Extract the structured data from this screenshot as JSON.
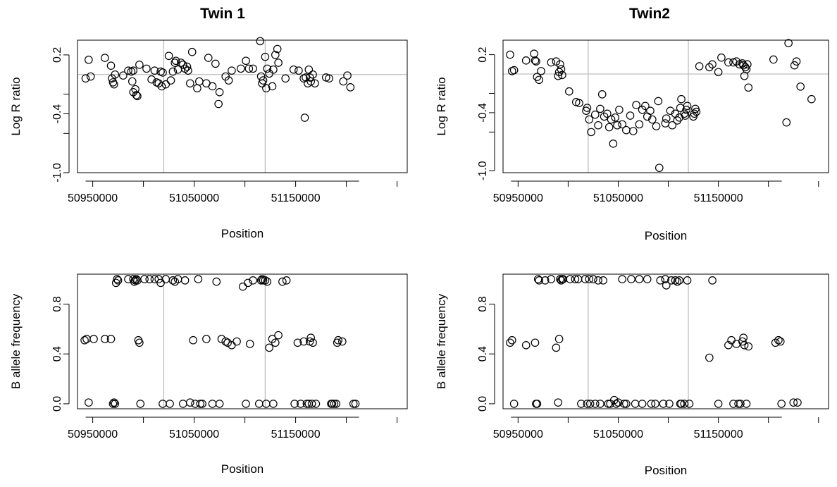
{
  "figure": {
    "titles": [
      "Twin 1",
      "Twin2"
    ]
  },
  "chart_data": [
    {
      "panel": "twin1-lrr",
      "type": "scatter",
      "title": "Twin 1",
      "xlabel": "Position",
      "ylabel": "Log R ratio",
      "xlim": [
        50935000,
        51260000
      ],
      "ylim": [
        -1.0,
        0.35
      ],
      "x_ticks": [
        50950000,
        51050000,
        51150000
      ],
      "y_ticks": [
        -1.0,
        -0.6,
        -0.4,
        -0.2,
        0.2
      ],
      "y_tick_labels": [
        "-1.0",
        "",
        "-0.4",
        "",
        "0.2"
      ],
      "hline": 0.0,
      "vlines": [
        51020000,
        51120000
      ],
      "x": [
        50943000,
        50946000,
        50948000,
        50962000,
        50968000,
        50969000,
        50970000,
        50971000,
        50972000,
        50980000,
        50985000,
        50988000,
        50989000,
        50990000,
        50990000,
        50992000,
        50993000,
        50994000,
        50996000,
        51003000,
        51008000,
        51011000,
        51013000,
        51015000,
        51017000,
        51018000,
        51019000,
        51022000,
        51025000,
        51027000,
        51029000,
        51031000,
        51032000,
        51034000,
        51037000,
        51039000,
        51041000,
        51043000,
        51044000,
        51046000,
        51048000,
        51053000,
        51055000,
        51062000,
        51064000,
        51068000,
        51071000,
        51074000,
        51075000,
        51081000,
        51084000,
        51087000,
        51096000,
        51101000,
        51104000,
        51108000,
        51115000,
        51116000,
        51117000,
        51118000,
        51120000,
        51121000,
        51122000,
        51124000,
        51127000,
        51128000,
        51130000,
        51132000,
        51133000,
        51140000,
        51148000,
        51153000,
        51158000,
        51159000,
        51160000,
        51162000,
        51163000,
        51164000,
        51165000,
        51167000,
        51169000,
        51180000,
        51183000,
        51197000,
        51201000,
        51204000
      ],
      "y": [
        -0.04,
        0.15,
        -0.02,
        0.17,
        0.09,
        -0.04,
        -0.08,
        -0.1,
        0.0,
        -0.01,
        0.04,
        0.03,
        -0.07,
        -0.18,
        0.04,
        -0.15,
        -0.21,
        -0.22,
        0.1,
        0.06,
        -0.05,
        0.04,
        -0.08,
        -0.09,
        0.03,
        -0.12,
        0.02,
        -0.1,
        0.19,
        -0.06,
        0.03,
        0.12,
        0.14,
        0.05,
        0.12,
        0.1,
        0.06,
        0.08,
        0.04,
        -0.09,
        0.23,
        -0.14,
        -0.07,
        -0.09,
        0.17,
        -0.12,
        0.11,
        -0.3,
        -0.18,
        -0.02,
        -0.06,
        0.04,
        0.06,
        0.14,
        0.06,
        0.06,
        0.34,
        -0.02,
        -0.09,
        -0.06,
        0.18,
        -0.14,
        0.06,
        0.01,
        -0.12,
        0.05,
        0.2,
        0.26,
        0.12,
        -0.04,
        0.05,
        0.04,
        -0.04,
        -0.44,
        -0.03,
        -0.09,
        0.05,
        -0.03,
        -0.07,
        0.0,
        -0.09,
        -0.03,
        -0.04,
        -0.07,
        -0.01,
        -0.13
      ]
    },
    {
      "panel": "twin1-baf",
      "type": "scatter",
      "xlabel": "Position",
      "ylabel": "B allele frequency",
      "xlim": [
        50935000,
        51260000
      ],
      "ylim": [
        -0.04,
        1.04
      ],
      "x_ticks": [
        50950000,
        51050000,
        51150000
      ],
      "y_ticks": [
        0.0,
        0.4,
        0.8
      ],
      "y_tick_labels": [
        "0.0",
        "0.4",
        "0.8"
      ],
      "vlines": [
        51020000,
        51120000
      ],
      "x": [
        50942000,
        50944000,
        50946000,
        50951000,
        50962000,
        50968000,
        50970000,
        50971000,
        50972000,
        50973000,
        50974000,
        50975000,
        50985000,
        50990000,
        50991000,
        50992000,
        50993000,
        50994000,
        50995000,
        50996000,
        50997000,
        51001000,
        51006000,
        51011000,
        51015000,
        51017000,
        51019000,
        51022000,
        51026000,
        51029000,
        51031000,
        51034000,
        51039000,
        51041000,
        51046000,
        51049000,
        51051000,
        51054000,
        51056000,
        51058000,
        51062000,
        51068000,
        51072000,
        51075000,
        51077000,
        51081000,
        51083000,
        51087000,
        51092000,
        51098000,
        51101000,
        51103000,
        51105000,
        51108000,
        51114000,
        51116000,
        51117000,
        51118000,
        51120000,
        51121000,
        51122000,
        51124000,
        51127000,
        51128000,
        51130000,
        51133000,
        51137000,
        51141000,
        51149000,
        51152000,
        51155000,
        51158000,
        51161000,
        51163000,
        51164000,
        51165000,
        51166000,
        51167000,
        51170000,
        51185000,
        51186000,
        51188000,
        51190000,
        51191000,
        51192000,
        51196000,
        51207000,
        51209000
      ],
      "y": [
        0.51,
        0.52,
        0.01,
        0.52,
        0.52,
        0.52,
        0.0,
        0.01,
        0.0,
        0.97,
        1.0,
        0.99,
        1.0,
        1.0,
        0.98,
        0.99,
        1.0,
        0.99,
        0.51,
        0.49,
        0.0,
        1.0,
        1.0,
        1.0,
        1.0,
        0.97,
        0.0,
        1.0,
        0.0,
        0.99,
        0.98,
        1.0,
        0.0,
        0.99,
        0.01,
        0.51,
        0.0,
        1.0,
        0.0,
        0.0,
        0.52,
        0.0,
        0.98,
        0.0,
        0.52,
        0.5,
        0.49,
        0.47,
        0.5,
        0.94,
        0.0,
        0.97,
        0.48,
        0.99,
        0.0,
        0.99,
        1.0,
        0.99,
        0.99,
        0.0,
        0.98,
        0.45,
        0.52,
        0.0,
        0.49,
        0.55,
        0.98,
        0.99,
        0.0,
        0.49,
        0.0,
        0.5,
        0.0,
        0.0,
        0.5,
        0.53,
        0.0,
        0.49,
        0.0,
        0.0,
        0.0,
        0.0,
        0.0,
        0.49,
        0.51,
        0.5,
        0.0,
        0.0
      ]
    },
    {
      "panel": "twin2-lrr",
      "type": "scatter",
      "title": "Twin2",
      "xlabel": "Position",
      "ylabel": "Log R ratio",
      "xlim": [
        50935000,
        51260000
      ],
      "ylim": [
        -1.02,
        0.35
      ],
      "x_ticks": [
        50950000,
        51050000,
        51150000
      ],
      "y_ticks": [
        -1.0,
        -0.6,
        -0.4,
        -0.2,
        0.2
      ],
      "y_tick_labels": [
        "-1.0",
        "",
        "-0.4",
        "",
        "0.2"
      ],
      "hline": 0.0,
      "vlines": [
        51020000,
        51120000
      ],
      "x": [
        50942000,
        50944000,
        50946000,
        50958000,
        50966000,
        50967000,
        50968000,
        50969000,
        50971000,
        50973000,
        50983000,
        50988000,
        50990000,
        50991000,
        50992000,
        50993000,
        50994000,
        51001000,
        51008000,
        51011000,
        51018000,
        51019000,
        51021000,
        51023000,
        51027000,
        51030000,
        51032000,
        51034000,
        51036000,
        51039000,
        51041000,
        51043000,
        51045000,
        51047000,
        51049000,
        51051000,
        51054000,
        51058000,
        51062000,
        51065000,
        51068000,
        51071000,
        51074000,
        51077000,
        51079000,
        51082000,
        51084000,
        51088000,
        51090000,
        51091000,
        51097000,
        51098000,
        51102000,
        51104000,
        51107000,
        51109000,
        51111000,
        51112000,
        51113000,
        51116000,
        51117000,
        51118000,
        51119000,
        51125000,
        51126000,
        51127000,
        51128000,
        51131000,
        51141000,
        51144000,
        51150000,
        51153000,
        51160000,
        51165000,
        51168000,
        51171000,
        51174000,
        51175000,
        51176000,
        51177000,
        51178000,
        51179000,
        51180000,
        51205000,
        51218000,
        51220000,
        51226000,
        51228000,
        51232000,
        51243000
      ],
      "y": [
        0.2,
        0.03,
        0.04,
        0.14,
        0.21,
        0.14,
        0.13,
        -0.03,
        -0.06,
        0.03,
        0.12,
        0.13,
        -0.02,
        0.02,
        0.1,
        0.05,
        -0.01,
        -0.18,
        -0.29,
        -0.3,
        -0.38,
        -0.35,
        -0.47,
        -0.6,
        -0.42,
        -0.53,
        -0.36,
        -0.21,
        -0.44,
        -0.41,
        -0.55,
        -0.47,
        -0.72,
        -0.45,
        -0.53,
        -0.37,
        -0.52,
        -0.58,
        -0.43,
        -0.59,
        -0.32,
        -0.52,
        -0.37,
        -0.33,
        -0.44,
        -0.38,
        -0.47,
        -0.54,
        -0.28,
        -0.97,
        -0.51,
        -0.46,
        -0.38,
        -0.53,
        -0.41,
        -0.48,
        -0.45,
        -0.35,
        -0.26,
        -0.41,
        -0.43,
        -0.37,
        -0.33,
        -0.44,
        -0.41,
        -0.36,
        -0.39,
        0.08,
        0.07,
        0.1,
        0.02,
        0.17,
        0.12,
        0.12,
        0.13,
        0.1,
        0.11,
        0.09,
        -0.02,
        0.07,
        0.05,
        0.1,
        -0.14,
        0.15,
        -0.5,
        0.32,
        0.09,
        0.13,
        -0.13,
        -0.26
      ]
    },
    {
      "panel": "twin2-baf",
      "type": "scatter",
      "xlabel": "Position",
      "ylabel": "B allele frequency",
      "xlim": [
        50935000,
        51260000
      ],
      "ylim": [
        -0.04,
        1.04
      ],
      "x_ticks": [
        50950000,
        51050000,
        51150000
      ],
      "y_ticks": [
        0.0,
        0.4,
        0.8
      ],
      "y_tick_labels": [
        "0.0",
        "0.4",
        "0.8"
      ],
      "vlines": [
        51020000,
        51120000
      ],
      "x": [
        50942000,
        50944000,
        50946000,
        50958000,
        50967000,
        50968000,
        50969000,
        50970000,
        50971000,
        50977000,
        50983000,
        50988000,
        50990000,
        50991000,
        50992000,
        50993000,
        50994000,
        50995000,
        51002000,
        51007000,
        51010000,
        51013000,
        51017000,
        51019000,
        51021000,
        51022000,
        51025000,
        51027000,
        51030000,
        51032000,
        51035000,
        51040000,
        51042000,
        51046000,
        51048000,
        51050000,
        51054000,
        51056000,
        51058000,
        51063000,
        51067000,
        51071000,
        51074000,
        51079000,
        51083000,
        51087000,
        51092000,
        51095000,
        51097000,
        51098000,
        51101000,
        51103000,
        51107000,
        51109000,
        51111000,
        51112000,
        51113000,
        51116000,
        51119000,
        51121000,
        51141000,
        51144000,
        51150000,
        51160000,
        51163000,
        51165000,
        51168000,
        51170000,
        51172000,
        51174000,
        51175000,
        51176000,
        51178000,
        51180000,
        51207000,
        51210000,
        51212000,
        51213000,
        51225000,
        51229000
      ],
      "y": [
        0.49,
        0.51,
        0.0,
        0.47,
        0.49,
        0.0,
        0.0,
        1.0,
        0.99,
        0.99,
        1.0,
        0.45,
        0.01,
        0.52,
        1.0,
        0.99,
        1.0,
        1.0,
        1.0,
        1.0,
        1.0,
        0.0,
        1.0,
        0.0,
        1.0,
        0.0,
        1.0,
        0.0,
        0.99,
        0.0,
        0.99,
        0.0,
        0.0,
        0.03,
        0.0,
        0.01,
        1.0,
        0.0,
        0.0,
        1.0,
        0.0,
        1.0,
        0.0,
        1.0,
        0.0,
        0.0,
        0.99,
        0.0,
        1.0,
        0.95,
        0.0,
        0.99,
        0.99,
        0.98,
        0.99,
        0.0,
        0.0,
        0.0,
        0.99,
        0.0,
        0.37,
        0.99,
        0.0,
        0.47,
        0.51,
        0.0,
        0.48,
        0.0,
        0.0,
        0.5,
        0.53,
        0.47,
        0.0,
        0.46,
        0.49,
        0.51,
        0.5,
        0.0,
        0.01,
        0.01
      ]
    }
  ]
}
